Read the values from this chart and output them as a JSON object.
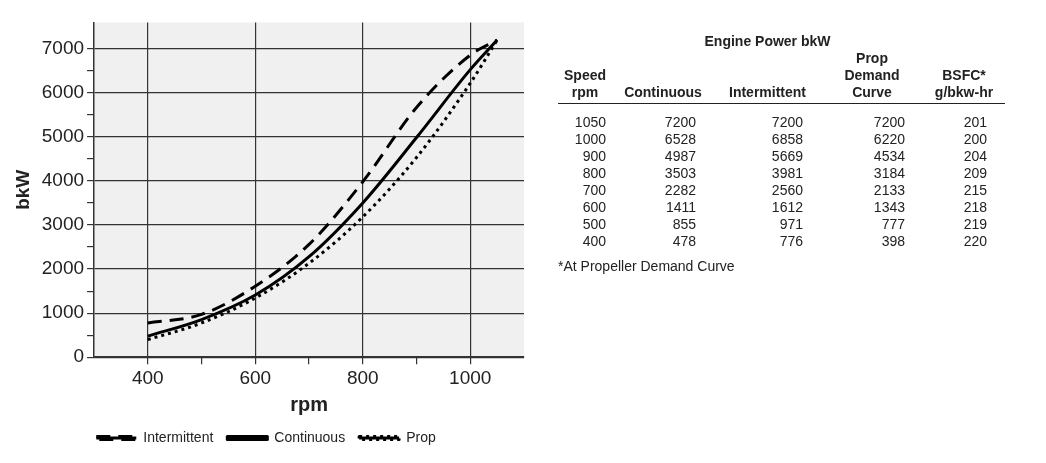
{
  "chart_data": [
    {
      "type": "line",
      "xlabel": "rpm",
      "ylabel": "bkW",
      "x": [
        400,
        500,
        600,
        700,
        800,
        900,
        1000,
        1050
      ],
      "series": [
        {
          "name": "Intermittent",
          "color": "#000000",
          "line_style": "dashed",
          "values": [
            776,
            971,
            1612,
            2560,
            3981,
            5669,
            6858,
            7200
          ]
        },
        {
          "name": "Continuous",
          "color": "#000000",
          "line_style": "solid",
          "values": [
            478,
            855,
            1411,
            2282,
            3503,
            4987,
            6528,
            7200
          ]
        },
        {
          "name": "Prop",
          "color": "#000000",
          "line_style": "dotted",
          "values": [
            398,
            777,
            1343,
            2133,
            3184,
            4534,
            6220,
            7200
          ]
        }
      ],
      "xlim": [
        300,
        1100
      ],
      "xticks": [
        400,
        {
          "value": 500,
          "label": null
        },
        600,
        {
          "value": 700,
          "label": null
        },
        800,
        {
          "value": 900,
          "label": null
        },
        1000
      ],
      "ylim": [
        0,
        7600
      ],
      "yticks": [
        0,
        {
          "value": 500,
          "label": null
        },
        1000,
        {
          "value": 1500,
          "label": null
        },
        2000,
        {
          "value": 2500,
          "label": null
        },
        3000,
        {
          "value": 3500,
          "label": null
        },
        4000,
        {
          "value": 4500,
          "label": null
        },
        5000,
        {
          "value": 5500,
          "label": null
        },
        6000,
        {
          "value": 6500,
          "label": null
        },
        7000
      ],
      "grid": true,
      "legend": "bottom",
      "marker": "none"
    },
    {
      "type": "other",
      "title": "Engine Power bkW",
      "xlabel": "Speed rpm",
      "categories": [
        "1050",
        "1000",
        "900",
        "800",
        "700",
        "600",
        "500",
        "400"
      ],
      "data_labels": true,
      "series": [
        {
          "name": "Continuous",
          "values": [
            7200,
            6528,
            4987,
            3503,
            2282,
            1411,
            855,
            478
          ]
        },
        {
          "name": "Intermittent",
          "values": [
            7200,
            6858,
            5669,
            3981,
            2560,
            1612,
            971,
            776
          ]
        },
        {
          "name": "Prop Demand Curve",
          "values": [
            7200,
            6220,
            4534,
            3184,
            2133,
            1343,
            777,
            398
          ]
        },
        {
          "name": "BSFC* g/bkw-hr",
          "values": [
            201,
            200,
            204,
            209,
            215,
            218,
            219,
            220
          ]
        }
      ],
      "annotations": [
        "*At Propeller Demand Curve"
      ]
    }
  ]
}
